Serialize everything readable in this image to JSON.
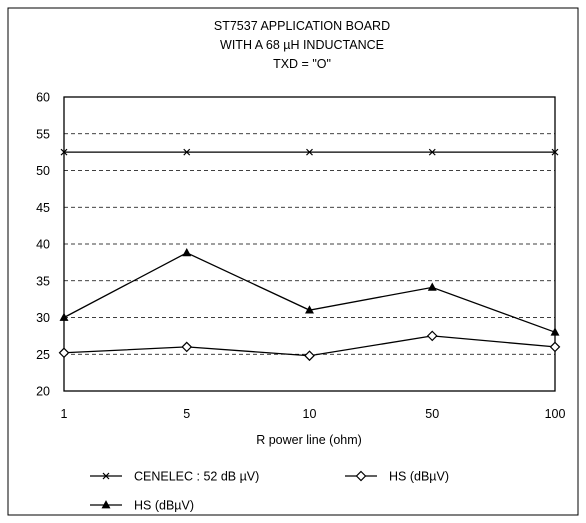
{
  "chart_data": {
    "type": "line",
    "title": [
      "ST7537 APPLICATION BOARD",
      "WITH A 68 µH INDUCTANCE",
      "TXD = \"O\""
    ],
    "categories": [
      "1",
      "5",
      "10",
      "50",
      "100"
    ],
    "xlabel": "R power line (ohm)",
    "ylabel": "",
    "ylim": [
      20,
      60
    ],
    "yticks": [
      20,
      25,
      30,
      35,
      40,
      45,
      50,
      55,
      60
    ],
    "grid": "horizontal dashed",
    "legend_position": "bottom",
    "series": [
      {
        "name": "CENELEC : 52 dB  µV)",
        "marker": "x",
        "values": [
          52.5,
          52.5,
          52.5,
          52.5,
          52.5
        ]
      },
      {
        "name": "HS (dBµV)",
        "marker": "diamond",
        "values": [
          25.2,
          26.0,
          24.8,
          27.5,
          26.0
        ]
      },
      {
        "name": "HS (dBµV)",
        "marker": "triangle",
        "values": [
          30.0,
          38.8,
          31.0,
          34.1,
          28.0
        ]
      }
    ]
  }
}
